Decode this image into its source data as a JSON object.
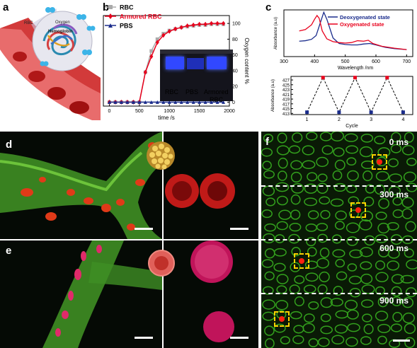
{
  "panels": {
    "a": {
      "label": "a",
      "texts": {
        "rbc": "RBC",
        "oxygen": "Oxygen",
        "hemoglobin": "Hemoglobin"
      }
    },
    "b": {
      "label": "b",
      "inset_labels": {
        "rbc": "RBC",
        "pbs": "PBS",
        "armored_line1": "Armored",
        "armored_line2": "RBC"
      }
    },
    "c": {
      "label": "c"
    },
    "d": {
      "label": "d"
    },
    "e": {
      "label": "e"
    },
    "f": {
      "label": "f",
      "times": [
        "0 ms",
        "300 ms",
        "600 ms",
        "900 ms"
      ]
    }
  },
  "colors": {
    "red": "#e8001c",
    "gray": "#aaaaaa",
    "navy": "#1a2c8c",
    "green": "#2ea82e",
    "yellow": "#ffd200"
  },
  "chart_data": [
    {
      "id": "b",
      "type": "line",
      "xlabel": "time /s",
      "ylabel": "Oxygen content %",
      "xlim": [
        -100,
        2000
      ],
      "ylim": [
        -5,
        110
      ],
      "xticks": [
        0,
        500,
        1000,
        1500,
        2000
      ],
      "yticks": [
        0,
        20,
        40,
        60,
        80,
        100
      ],
      "legend_position": "top-left",
      "series": [
        {
          "name": "RBC",
          "color": "#aaaaaa",
          "marker": "square",
          "x": [
            0,
            100,
            200,
            300,
            400,
            500,
            600,
            700,
            800,
            900,
            1000,
            1100,
            1200,
            1300,
            1400,
            1500,
            1600,
            1700,
            1800,
            1900
          ],
          "y": [
            0,
            0,
            0,
            0,
            0,
            0,
            38,
            65,
            80,
            87,
            91,
            93,
            95,
            96,
            97,
            98,
            98,
            99,
            99,
            99
          ]
        },
        {
          "name": "Armored RBC",
          "color": "#e8001c",
          "marker": "diamond",
          "x": [
            0,
            100,
            200,
            300,
            400,
            500,
            600,
            700,
            800,
            900,
            1000,
            1100,
            1200,
            1300,
            1400,
            1500,
            1600,
            1700,
            1800,
            1900
          ],
          "y": [
            0,
            0,
            0,
            0,
            0,
            0,
            38,
            58,
            76,
            85,
            90,
            93,
            95,
            97,
            98,
            99,
            99,
            100,
            100,
            100
          ]
        },
        {
          "name": "PBS",
          "color": "#1a2c8c",
          "marker": "triangle",
          "x": [
            0,
            100,
            200,
            300,
            400,
            500,
            600,
            700,
            800,
            900,
            1000,
            1100,
            1200,
            1300,
            1400,
            1500,
            1600,
            1700,
            1800,
            1900
          ],
          "y": [
            0,
            0,
            0,
            0,
            0,
            0,
            0,
            0,
            0,
            0,
            0,
            0,
            0,
            0,
            0,
            0,
            0,
            0,
            0,
            0
          ]
        }
      ]
    },
    {
      "id": "c-top",
      "type": "line",
      "xlabel": "Wavelength /nm",
      "ylabel": "Absorbance (a.u)",
      "xlim": [
        300,
        720
      ],
      "xticks": [
        300,
        400,
        500,
        600,
        700
      ],
      "legend_position": "top-right",
      "series": [
        {
          "name": "Deoxygenated state",
          "color": "#1a2c8c",
          "x": [
            350,
            370,
            390,
            405,
            420,
            430,
            440,
            460,
            480,
            500,
            520,
            540,
            560,
            580,
            600,
            630,
            660,
            700
          ],
          "y": [
            0.33,
            0.34,
            0.37,
            0.45,
            0.75,
            0.95,
            0.8,
            0.4,
            0.28,
            0.26,
            0.25,
            0.25,
            0.27,
            0.28,
            0.25,
            0.2,
            0.17,
            0.15
          ]
        },
        {
          "name": "Oxygenated state",
          "color": "#e8001c",
          "x": [
            350,
            370,
            390,
            400,
            408,
            415,
            425,
            440,
            460,
            480,
            500,
            520,
            540,
            560,
            575,
            590,
            620,
            660,
            700
          ],
          "y": [
            0.55,
            0.58,
            0.68,
            0.8,
            0.88,
            0.82,
            0.55,
            0.38,
            0.32,
            0.3,
            0.29,
            0.3,
            0.34,
            0.33,
            0.35,
            0.28,
            0.22,
            0.18,
            0.15
          ]
        }
      ]
    },
    {
      "id": "c-bottom",
      "type": "line",
      "xlabel": "Cycle",
      "ylabel": "Absorbance (a.u)",
      "xlim": [
        0.5,
        4.3
      ],
      "ylim": [
        412.5,
        428.5
      ],
      "xticks": [
        1,
        2,
        3,
        4
      ],
      "yticks": [
        413,
        415,
        417,
        419,
        421,
        423,
        425,
        427
      ],
      "series": [
        {
          "name": "",
          "style": "dashed",
          "x": [
            1,
            1.5,
            2,
            2.5,
            3,
            3.5,
            4
          ],
          "y": [
            413.5,
            428,
            413.5,
            428,
            413.5,
            428,
            413.5
          ],
          "colors": [
            "#1a2c8c",
            "#e8001c",
            "#1a2c8c",
            "#e8001c",
            "#1a2c8c",
            "#e8001c",
            "#1a2c8c"
          ]
        }
      ]
    }
  ]
}
